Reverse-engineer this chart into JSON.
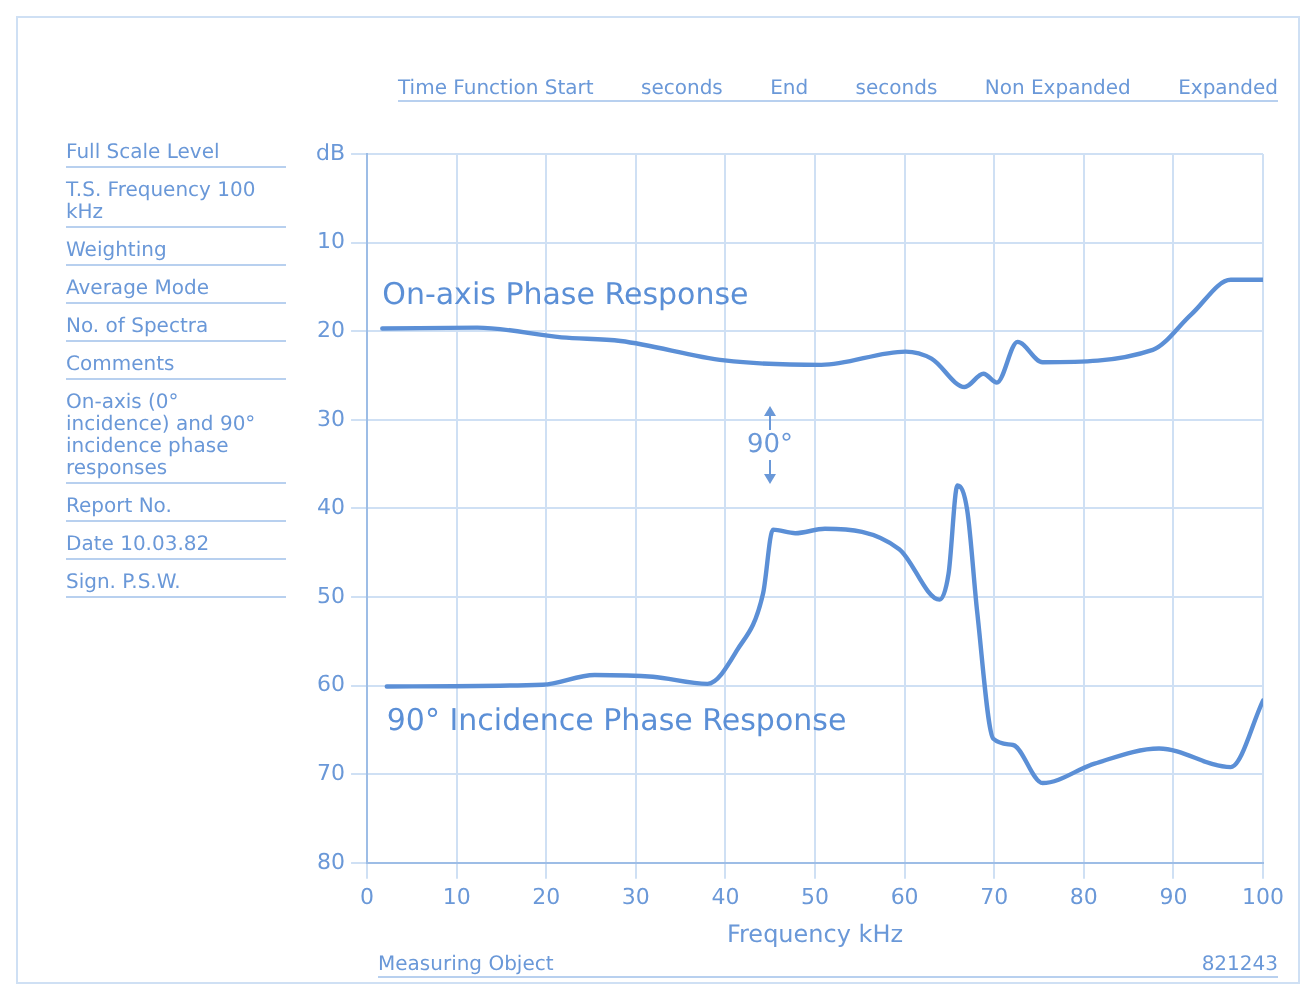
{
  "chart_data": {
    "type": "line",
    "xlabel": "Frequency kHz",
    "xlim": [
      0,
      100
    ],
    "xticks": [
      0,
      10,
      20,
      30,
      40,
      50,
      60,
      70,
      80,
      90,
      100
    ],
    "ylim": [
      80,
      0
    ],
    "yticks": [
      {
        "value": 0,
        "label": "dB"
      },
      10,
      20,
      30,
      40,
      50,
      60,
      70,
      80
    ],
    "grid": true,
    "legend": false,
    "marker": "none",
    "line_style": "solid",
    "series": [
      {
        "name": "On-axis Phase Response",
        "color": "#5b8fd6",
        "x": [
          1.7,
          12.3,
          21.7,
          28.3,
          39.9,
          50.7,
          60.1,
          63,
          66.7,
          68.8,
          70.3,
          72.6,
          75.4,
          87.7,
          92,
          96.4,
          100
        ],
        "values": [
          19.7,
          19.6,
          20.7,
          21.1,
          23.3,
          23.8,
          22.3,
          23.1,
          26.3,
          24.8,
          25.8,
          21.2,
          23.5,
          22.1,
          18.1,
          14.2,
          14.2
        ]
      },
      {
        "name": "90° Incidence Phase Response",
        "color": "#5b8fd6",
        "x": [
          2.2,
          19.6,
          25.4,
          31.9,
          38,
          41.3,
          44.2,
          45.3,
          47.8,
          51.1,
          59.4,
          63.9,
          64.9,
          65.9,
          67,
          68.1,
          69.9,
          72.1,
          75.4,
          81.2,
          88.4,
          96.4,
          100
        ],
        "values": [
          60.1,
          59.9,
          58.8,
          59,
          59.8,
          56,
          49.6,
          42.4,
          42.8,
          42.3,
          44.6,
          50.3,
          47.4,
          37.4,
          40.3,
          51.7,
          66,
          66.7,
          71,
          68.8,
          67.1,
          69.2,
          61.7
        ]
      }
    ],
    "annotations": [
      "Full Scale Level",
      "T.S. Frequency 100 kHz",
      "Weighting",
      "Average Mode",
      "No. of Spectra",
      "Comments",
      "On-axis (0° incidence) and 90° incidence phase responses",
      "Report No.",
      "Date 10.03.82",
      "Sign. P.S.W.",
      "Time Function Start",
      "seconds",
      "End",
      "seconds",
      "Non Expanded",
      "Expanded",
      "Measuring Object",
      "821243",
      "90°"
    ]
  }
}
